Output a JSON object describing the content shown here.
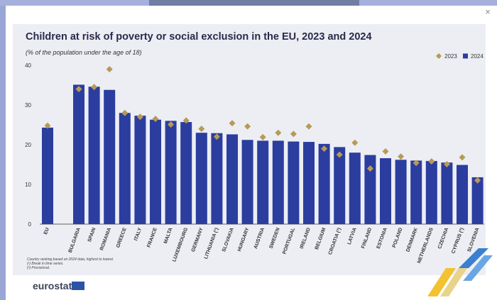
{
  "dialog": {
    "close_label": "×"
  },
  "chart_data": {
    "type": "bar",
    "title": "Children at risk of poverty or social exclusion in the EU, 2023 and 2024",
    "subtitle": "(% of the population under the age of 18)",
    "categories": [
      "EU",
      "Bulgaria",
      "Spain",
      "Romania",
      "Greece",
      "Italy",
      "France",
      "Malta",
      "Luxembourg",
      "Germany",
      "Lithuania (¹)",
      "Slovakia",
      "Hungary",
      "Austria",
      "Sweden",
      "Portugal",
      "Ireland",
      "Belgium",
      "Croatia (²)",
      "Latvia",
      "Finland",
      "Estonia",
      "Poland",
      "Denmark",
      "Netherlands",
      "Czechia",
      "Cyprus (²)",
      "Slovenia"
    ],
    "series": [
      {
        "name": "2023",
        "marker": "diamond",
        "color": "#b79a57",
        "values": [
          24.8,
          34.0,
          34.5,
          39.0,
          28.0,
          27.0,
          26.5,
          25.1,
          26.1,
          24.0,
          22.0,
          25.4,
          24.6,
          21.9,
          23.0,
          22.7,
          24.6,
          19.0,
          17.5,
          20.5,
          14.0,
          18.3,
          17.0,
          15.4,
          15.8,
          15.1,
          16.8,
          11.0
        ]
      },
      {
        "name": "2024",
        "marker": "bar",
        "color": "#2b3d9f",
        "values": [
          24.3,
          35.1,
          34.6,
          33.8,
          28.0,
          27.3,
          26.3,
          26.0,
          25.7,
          23.0,
          22.9,
          22.6,
          21.2,
          21.0,
          21.0,
          20.8,
          20.7,
          20.2,
          19.4,
          18.0,
          17.4,
          16.6,
          16.2,
          16.0,
          15.9,
          15.5,
          14.9,
          11.8
        ]
      }
    ],
    "y_ticks": [
      0,
      10,
      20,
      30,
      40
    ],
    "ylim": [
      0,
      40
    ],
    "grid": false,
    "legend": "top-right"
  },
  "notes": [
    "Country ranking based on 2024 data, highest to lowest.",
    "(¹) Break in time series.",
    "(²) Provisional."
  ],
  "brand": {
    "name": "eurostat"
  }
}
